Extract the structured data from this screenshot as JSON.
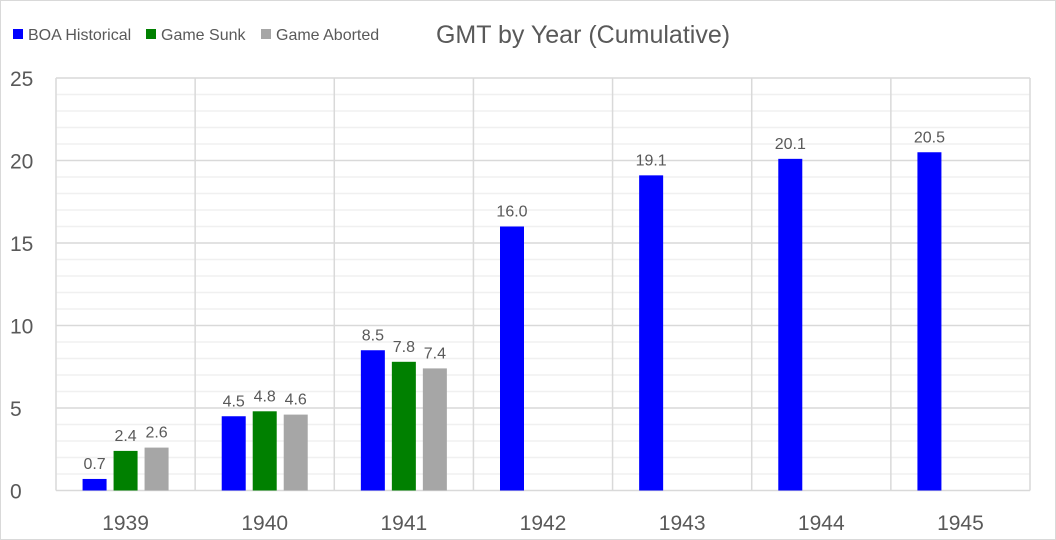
{
  "chart_data": {
    "type": "bar",
    "title": "GMT by Year (Cumulative)",
    "xlabel": "",
    "ylabel": "",
    "categories": [
      "1939",
      "1940",
      "1941",
      "1942",
      "1943",
      "1944",
      "1945"
    ],
    "series": [
      {
        "name": "BOA Historical",
        "color": "#0000ff",
        "values": [
          0.7,
          4.5,
          8.5,
          16.0,
          19.1,
          20.1,
          20.5
        ]
      },
      {
        "name": "Game Sunk",
        "color": "#008000",
        "values": [
          2.4,
          4.8,
          7.8,
          null,
          null,
          null,
          null
        ]
      },
      {
        "name": "Game Aborted",
        "color": "#a6a6a6",
        "values": [
          2.6,
          4.6,
          7.4,
          null,
          null,
          null,
          null
        ]
      }
    ],
    "ylim": [
      0,
      25
    ],
    "yticks": [
      0,
      5,
      10,
      15,
      20,
      25
    ],
    "minor_grid_step": 1,
    "grid": true,
    "data_labels": true,
    "legend_position": "top-left"
  }
}
